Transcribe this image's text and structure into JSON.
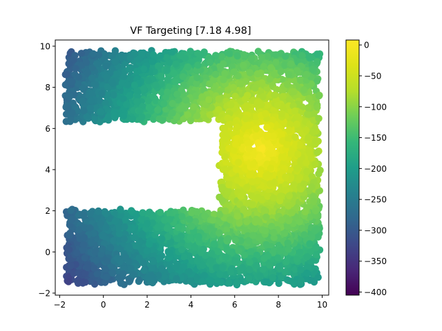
{
  "chart_data": {
    "type": "scatter",
    "title": "VF Targeting [7.18 4.98]",
    "xlabel": "",
    "ylabel": "",
    "xlim": [
      -2.2,
      10.3
    ],
    "ylim": [
      -2.1,
      10.3
    ],
    "x_ticks": [
      -2,
      0,
      2,
      4,
      6,
      8,
      10
    ],
    "y_ticks": [
      -2,
      0,
      2,
      4,
      6,
      8,
      10
    ],
    "grid": false,
    "legend": "none",
    "colormap": "viridis",
    "colorbar": {
      "range": [
        -405,
        8
      ],
      "ticks": [
        0,
        -50,
        -100,
        -150,
        -200,
        -250,
        -300,
        -350,
        -400
      ],
      "tick_labels": [
        "0",
        "−50",
        "−100",
        "−150",
        "−200",
        "−250",
        "−300",
        "−350",
        "−400"
      ]
    },
    "target": [
      7.18,
      4.98
    ],
    "regions": [
      {
        "name": "top-arm",
        "x": [
          -1.7,
          9.8
        ],
        "y": [
          6.4,
          9.7
        ]
      },
      {
        "name": "vertical-corridor",
        "x": [
          5.4,
          9.8
        ],
        "y": [
          1.6,
          6.4
        ]
      },
      {
        "name": "bottom-arm",
        "x": [
          -1.6,
          9.8
        ],
        "y": [
          -1.5,
          2.0
        ]
      }
    ],
    "value_model": "value ≈ -30 * euclidean distance to target",
    "point_count_estimate": 5000
  },
  "x_tick_labels": [
    "−2",
    "0",
    "2",
    "4",
    "6",
    "8",
    "10"
  ],
  "y_tick_labels": [
    "−2",
    "0",
    "2",
    "4",
    "6",
    "8",
    "10"
  ]
}
